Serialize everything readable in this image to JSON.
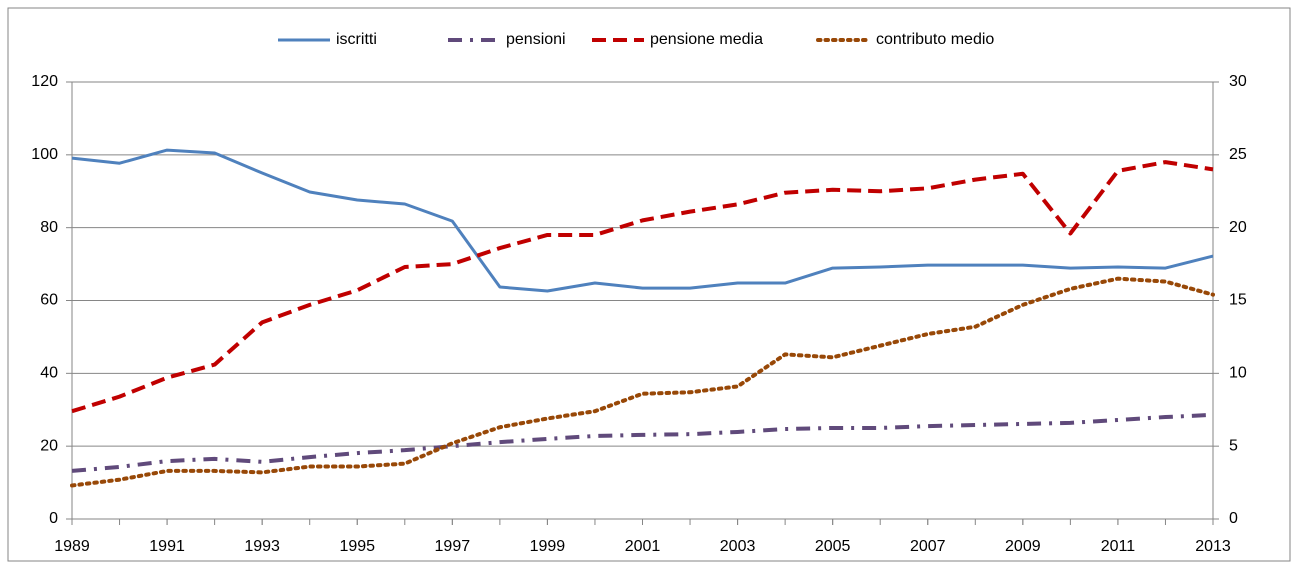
{
  "chart_data": {
    "type": "line",
    "x": [
      1989,
      1990,
      1991,
      1992,
      1993,
      1994,
      1995,
      1996,
      1997,
      1998,
      1999,
      2000,
      2001,
      2002,
      2003,
      2004,
      2005,
      2006,
      2007,
      2008,
      2009,
      2010,
      2011,
      2012,
      2013
    ],
    "xlim": [
      1989,
      2013
    ],
    "xticks": [
      1989,
      1991,
      1993,
      1995,
      1997,
      1999,
      2001,
      2003,
      2005,
      2007,
      2009,
      2011,
      2013
    ],
    "ylim": [
      0,
      120
    ],
    "yticks": [
      0,
      20,
      40,
      60,
      80,
      100,
      120
    ],
    "y2lim": [
      0,
      30
    ],
    "y2ticks": [
      0,
      5,
      10,
      15,
      20,
      25,
      30
    ],
    "grid": true,
    "legend": "top",
    "series": [
      {
        "name": "iscritti",
        "color": "#4f81bd",
        "dash": "solid",
        "values": [
          99.1,
          97.7,
          101.3,
          100.5,
          95,
          89.8,
          87.6,
          86.5,
          81.8,
          63.7,
          62.6,
          64.8,
          63.4,
          63.4,
          64.8,
          64.8,
          68.9,
          69.2,
          69.7,
          69.7,
          69.7,
          68.9,
          69.2,
          68.9,
          72.2
        ]
      },
      {
        "name": "pensioni",
        "color": "#604a7b",
        "dash": "dashdot",
        "values": [
          13.2,
          14.3,
          15.9,
          16.5,
          15.7,
          17,
          18.1,
          18.9,
          20,
          21.1,
          22,
          22.8,
          23.1,
          23.3,
          23.9,
          24.7,
          25,
          25,
          25.5,
          25.8,
          26.1,
          26.4,
          27.2,
          28,
          28.6
        ]
      },
      {
        "name": "pensione media",
        "color": "#c00000",
        "dash": "dashed",
        "axis": "y2",
        "values": [
          7.4,
          8.4,
          9.7,
          10.6,
          13.5,
          14.7,
          15.7,
          17.3,
          17.5,
          18.6,
          19.5,
          19.5,
          20.5,
          21.1,
          21.6,
          22.4,
          22.6,
          22.5,
          22.7,
          23.3,
          23.7,
          19.6,
          23.9,
          24.5,
          24
        ]
      },
      {
        "name": "contributo medio",
        "color": "#984807",
        "dash": "dotted",
        "axis": "y2",
        "values": [
          2.3,
          2.7,
          3.3,
          3.3,
          3.2,
          3.6,
          3.6,
          3.8,
          5.2,
          6.3,
          6.9,
          7.4,
          8.6,
          8.7,
          9.1,
          11.3,
          11.1,
          11.9,
          12.7,
          13.2,
          14.7,
          15.8,
          16.5,
          16.3,
          15.4
        ]
      }
    ]
  }
}
